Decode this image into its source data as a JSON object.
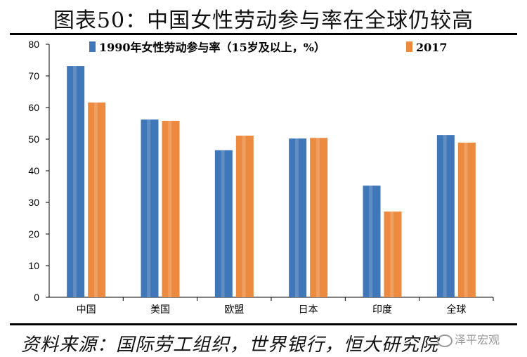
{
  "figure": {
    "title": "图表50：中国女性劳动参与率在全球仍较高",
    "source": "资料来源：国际劳工组织，世界银行，恒大研究院",
    "watermark": "泽平宏观"
  },
  "colors": {
    "series_1990": "#3f77b8",
    "series_2017": "#ec8a3f",
    "axis": "#000000"
  },
  "chart_data": {
    "type": "bar",
    "categories": [
      "中国",
      "美国",
      "欧盟",
      "日本",
      "印度",
      "全球"
    ],
    "series": [
      {
        "name": "1990年女性劳动参与率（15岁及以上，%）",
        "values": [
          73.1,
          56.2,
          46.5,
          50.2,
          35.3,
          51.3
        ]
      },
      {
        "name": "2017",
        "values": [
          61.6,
          55.8,
          51.1,
          50.4,
          27.1,
          48.9
        ]
      }
    ],
    "ylim": [
      0,
      80
    ],
    "yticks": [
      0,
      10,
      20,
      30,
      40,
      50,
      60,
      70,
      80
    ],
    "grid": false,
    "legend": "top-center"
  }
}
